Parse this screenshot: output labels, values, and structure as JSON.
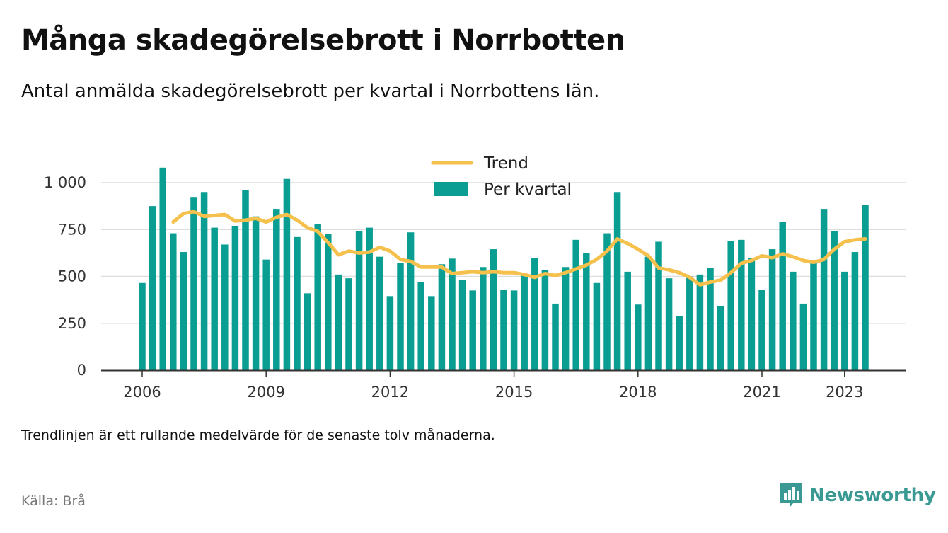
{
  "title": "Många skadegörelsebrott i Norrbotten",
  "subtitle": "Antal anmälda skadegörelsebrott per kvartal i Norrbottens län.",
  "note": "Trendlinjen är ett rullande medelvärde för de senaste tolv månaderna.",
  "source": "Källa: Brå",
  "brand": {
    "name": "Newsworthy",
    "icon": "newsworthy-logo-icon",
    "color": "#3a9a93"
  },
  "chart_data": {
    "type": "bar",
    "x_start": "2006 Q1",
    "x_tick_labels": [
      "2006",
      "2009",
      "2012",
      "2015",
      "2018",
      "2021",
      "2023"
    ],
    "x_tick_quarter_index": [
      0,
      12,
      24,
      36,
      48,
      60,
      68
    ],
    "y_tick_labels": [
      "0",
      "250",
      "500",
      "750",
      "1 000"
    ],
    "y_ticks": [
      0,
      250,
      500,
      750,
      1000
    ],
    "ylim": [
      0,
      1100
    ],
    "grid": true,
    "legend_position": "top-center",
    "series": [
      {
        "name": "Per kvartal",
        "type": "bar",
        "color": "#0a9e93",
        "values": [
          465,
          875,
          1080,
          730,
          630,
          920,
          950,
          760,
          670,
          770,
          960,
          820,
          590,
          860,
          1020,
          710,
          410,
          780,
          725,
          510,
          490,
          740,
          760,
          605,
          395,
          570,
          735,
          470,
          395,
          565,
          595,
          480,
          425,
          550,
          645,
          430,
          425,
          515,
          600,
          535,
          355,
          550,
          695,
          625,
          465,
          730,
          950,
          525,
          350,
          605,
          685,
          490,
          290,
          500,
          510,
          545,
          340,
          690,
          695,
          600,
          430,
          645,
          790,
          525,
          355,
          580,
          860,
          740,
          525,
          630,
          880
        ]
      },
      {
        "name": "Trend",
        "type": "line",
        "color": "#f5c04b",
        "values": [
          null,
          null,
          null,
          790,
          835,
          845,
          820,
          825,
          830,
          795,
          800,
          810,
          790,
          815,
          830,
          800,
          760,
          740,
          680,
          615,
          635,
          625,
          630,
          655,
          635,
          590,
          580,
          550,
          550,
          550,
          515,
          520,
          525,
          520,
          525,
          520,
          520,
          510,
          495,
          515,
          505,
          520,
          540,
          560,
          590,
          635,
          700,
          675,
          645,
          610,
          545,
          535,
          520,
          495,
          455,
          470,
          480,
          520,
          570,
          585,
          610,
          600,
          620,
          605,
          585,
          575,
          590,
          645,
          685,
          695,
          700
        ]
      }
    ]
  }
}
